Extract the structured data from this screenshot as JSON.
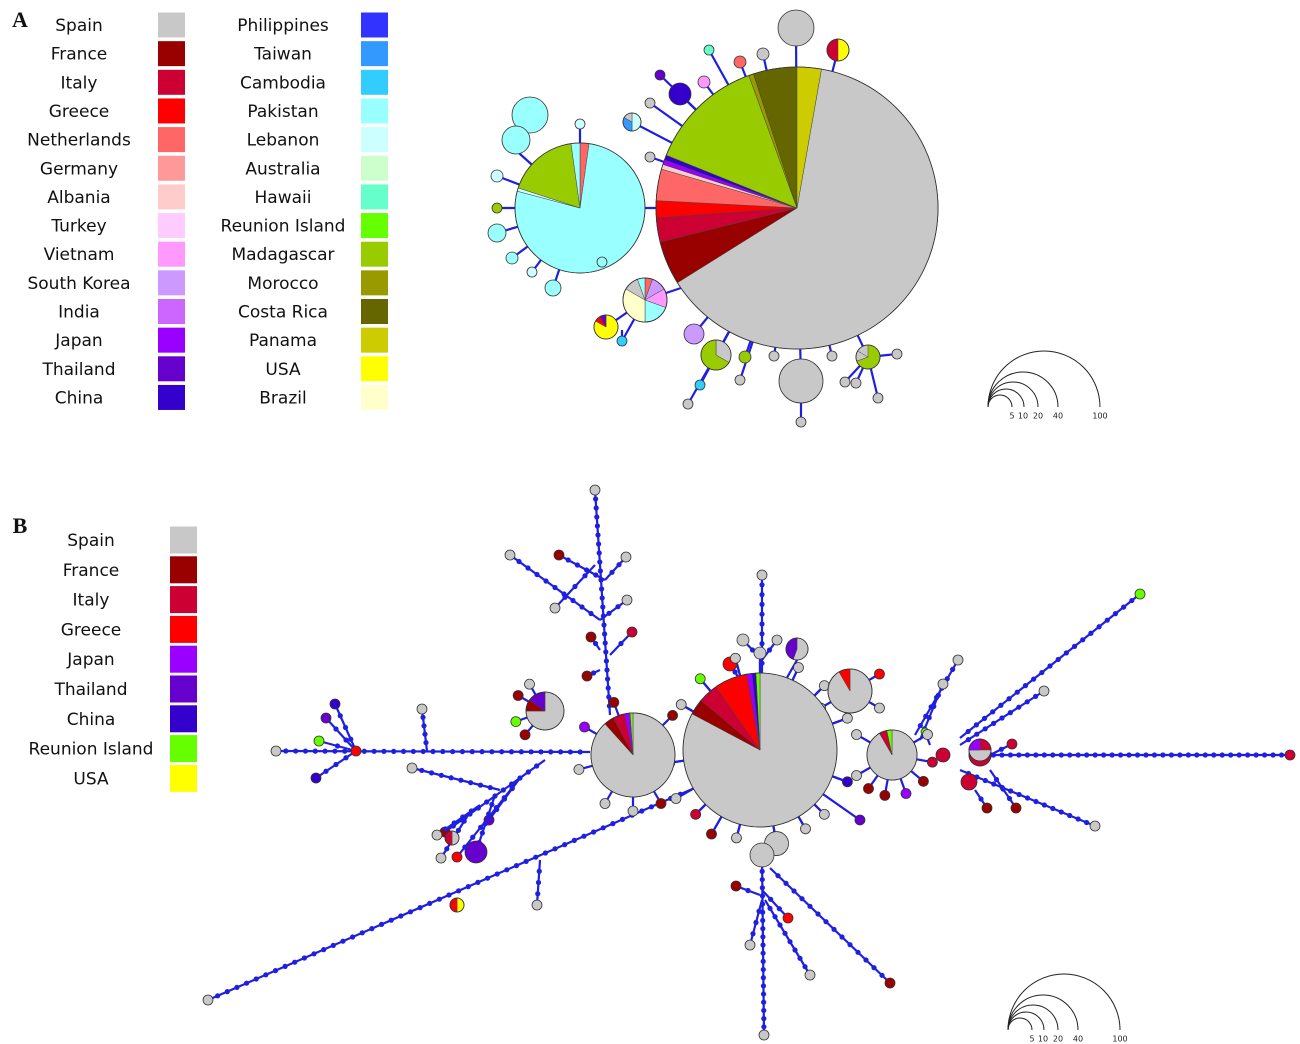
{
  "panels": [
    {
      "label": "A",
      "legend": [
        {
          "name": "Spain",
          "color": "#c8c8c8"
        },
        {
          "name": "France",
          "color": "#990000"
        },
        {
          "name": "Italy",
          "color": "#cc0033"
        },
        {
          "name": "Greece",
          "color": "#ff0000"
        },
        {
          "name": "Netherlands",
          "color": "#ff6666"
        },
        {
          "name": "Germany",
          "color": "#ff9999"
        },
        {
          "name": "Albania",
          "color": "#ffcccc"
        },
        {
          "name": "Turkey",
          "color": "#ffccff"
        },
        {
          "name": "Vietnam",
          "color": "#ff99ff"
        },
        {
          "name": "South Korea",
          "color": "#cc99ff"
        },
        {
          "name": "India",
          "color": "#cc66ff"
        },
        {
          "name": "Japan",
          "color": "#9900ff"
        },
        {
          "name": "Thailand",
          "color": "#6600cc"
        },
        {
          "name": "China",
          "color": "#3300cc"
        },
        {
          "name": "Philippines",
          "color": "#3333ff"
        },
        {
          "name": "Taiwan",
          "color": "#3399ff"
        },
        {
          "name": "Cambodia",
          "color": "#33ccff"
        },
        {
          "name": "Pakistan",
          "color": "#99ffff"
        },
        {
          "name": "Lebanon",
          "color": "#ccffff"
        },
        {
          "name": "Australia",
          "color": "#ccffcc"
        },
        {
          "name": "Hawaii",
          "color": "#66ffcc"
        },
        {
          "name": "Reunion Island",
          "color": "#66ff00"
        },
        {
          "name": "Madagascar",
          "color": "#99cc00"
        },
        {
          "name": "Morocco",
          "color": "#999900"
        },
        {
          "name": "Costa Rica",
          "color": "#666600"
        },
        {
          "name": "Panama",
          "color": "#cccc00"
        },
        {
          "name": "USA",
          "color": "#ffff00"
        },
        {
          "name": "Brazil",
          "color": "#ffffcc"
        }
      ],
      "scale": [
        "5",
        "10",
        "20",
        "40",
        "100"
      ]
    },
    {
      "label": "B",
      "legend": [
        {
          "name": "Spain",
          "color": "#c8c8c8"
        },
        {
          "name": "France",
          "color": "#990000"
        },
        {
          "name": "Italy",
          "color": "#cc0033"
        },
        {
          "name": "Greece",
          "color": "#ff0000"
        },
        {
          "name": "Japan",
          "color": "#9900ff"
        },
        {
          "name": "Thailand",
          "color": "#6600cc"
        },
        {
          "name": "China",
          "color": "#3300cc"
        },
        {
          "name": "Reunion Island",
          "color": "#66ff00"
        },
        {
          "name": "USA",
          "color": "#ffff00"
        }
      ],
      "scale": [
        "5",
        "10",
        "20",
        "40",
        "100"
      ]
    }
  ]
}
